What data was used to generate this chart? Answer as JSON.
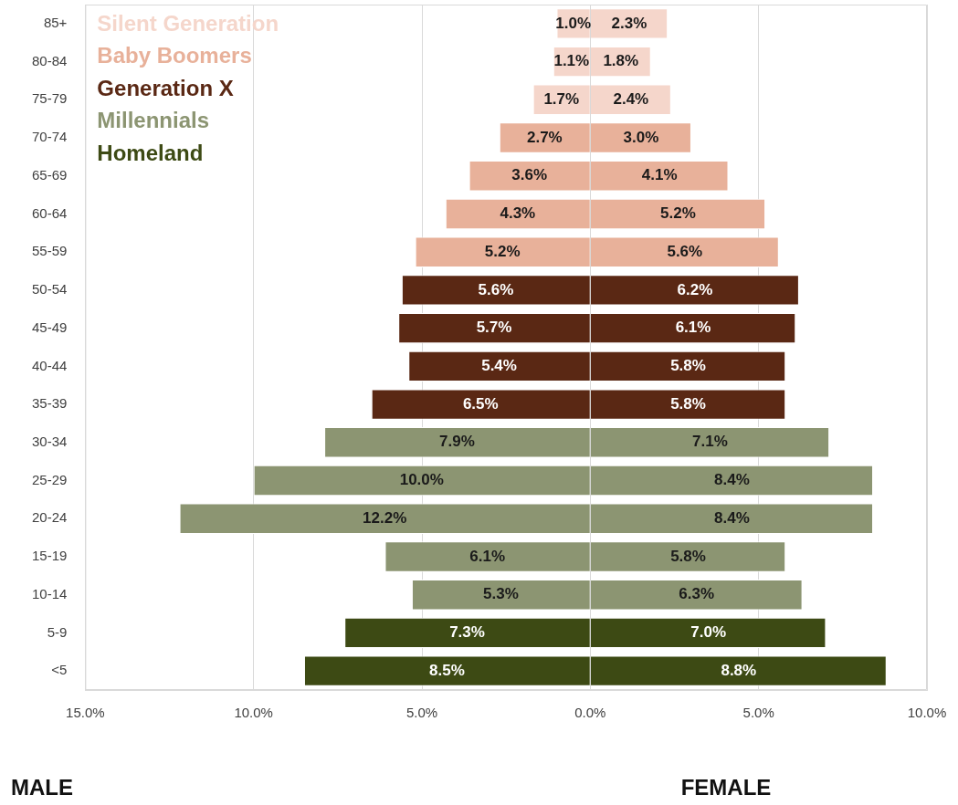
{
  "chart_data": {
    "type": "bar",
    "orientation": "horizontal",
    "categories": [
      "85+",
      "80-84",
      "75-79",
      "70-74",
      "65-69",
      "60-64",
      "55-59",
      "50-54",
      "45-49",
      "40-44",
      "35-39",
      "30-34",
      "25-29",
      "20-24",
      "15-19",
      "10-14",
      "5-9",
      "<5"
    ],
    "series": [
      {
        "name": "Silent Generation",
        "color": "#f5d6cb",
        "values": [
          1.0,
          1.1,
          1.7,
          null,
          null,
          null,
          null,
          null,
          null,
          null,
          null,
          null,
          null,
          null,
          null,
          null,
          null,
          null
        ],
        "base": [
          -1.0,
          -1.1,
          -1.7,
          null,
          null,
          null,
          null,
          null,
          null,
          null,
          null,
          null,
          null,
          null,
          null,
          null,
          null,
          null
        ],
        "value_labels": [
          "1.0%",
          "1.1%",
          "1.7%",
          null,
          null,
          null,
          null,
          null,
          null,
          null,
          null,
          null,
          null,
          null,
          null,
          null,
          null,
          null
        ]
      },
      {
        "color": "#f5d6cb",
        "values": [
          2.3,
          1.8,
          2.4,
          null,
          null,
          null,
          null,
          null,
          null,
          null,
          null,
          null,
          null,
          null,
          null,
          null,
          null,
          null
        ],
        "value_labels": [
          "2.3%",
          "1.8%",
          "2.4%",
          null,
          null,
          null,
          null,
          null,
          null,
          null,
          null,
          null,
          null,
          null,
          null,
          null,
          null,
          null
        ]
      },
      {
        "name": "Baby Boomers",
        "color": "#e8b19a",
        "values": [
          null,
          null,
          null,
          2.7,
          3.6,
          4.3,
          5.2,
          null,
          null,
          null,
          null,
          null,
          null,
          null,
          null,
          null,
          null,
          null
        ],
        "base": [
          null,
          null,
          null,
          -2.7,
          -3.6,
          -4.3,
          -5.2,
          null,
          null,
          null,
          null,
          null,
          null,
          null,
          null,
          null,
          null,
          null
        ],
        "value_labels": [
          null,
          null,
          null,
          "2.7%",
          "3.6%",
          "4.3%",
          "5.2%",
          null,
          null,
          null,
          null,
          null,
          null,
          null,
          null,
          null,
          null,
          null
        ]
      },
      {
        "color": "#e8b19a",
        "values": [
          null,
          null,
          null,
          3.0,
          4.1,
          5.2,
          5.6,
          null,
          null,
          null,
          null,
          null,
          null,
          null,
          null,
          null,
          null,
          null
        ],
        "value_labels": [
          null,
          null,
          null,
          "3.0%",
          "4.1%",
          "5.2%",
          "5.6%",
          null,
          null,
          null,
          null,
          null,
          null,
          null,
          null,
          null,
          null,
          null
        ]
      },
      {
        "name": "Generation X",
        "color": "#5a2814",
        "values": [
          null,
          null,
          null,
          null,
          null,
          null,
          null,
          5.6,
          5.7,
          5.4,
          6.5,
          null,
          null,
          null,
          null,
          null,
          null,
          null
        ],
        "base": [
          null,
          null,
          null,
          null,
          null,
          null,
          null,
          -5.6,
          -5.7,
          -5.4,
          -6.5,
          null,
          null,
          null,
          null,
          null,
          null,
          null
        ],
        "value_labels": [
          null,
          null,
          null,
          null,
          null,
          null,
          null,
          "5.6%",
          "5.7%",
          "5.4%",
          "6.5%",
          null,
          null,
          null,
          null,
          null,
          null,
          null
        ]
      },
      {
        "color": "#5a2814",
        "values": [
          null,
          null,
          null,
          null,
          null,
          null,
          null,
          6.2,
          6.1,
          5.8,
          5.8,
          null,
          null,
          null,
          null,
          null,
          null,
          null
        ],
        "value_labels": [
          null,
          null,
          null,
          null,
          null,
          null,
          null,
          "6.2%",
          "6.1%",
          "5.8%",
          "5.8%",
          null,
          null,
          null,
          null,
          null,
          null,
          null
        ]
      },
      {
        "name": "Millennials",
        "color": "#8c9572",
        "values": [
          null,
          null,
          null,
          null,
          null,
          null,
          null,
          null,
          null,
          null,
          null,
          7.9,
          10.0,
          12.2,
          6.1,
          5.3,
          null,
          null
        ],
        "base": [
          null,
          null,
          null,
          null,
          null,
          null,
          null,
          null,
          null,
          null,
          null,
          -7.9,
          -10.0,
          -12.2,
          -6.1,
          -5.3,
          null,
          null
        ],
        "value_labels": [
          null,
          null,
          null,
          null,
          null,
          null,
          null,
          null,
          null,
          null,
          null,
          "7.9%",
          "10.0%",
          "12.2%",
          "6.1%",
          "5.3%",
          null,
          null
        ]
      },
      {
        "color": "#8c9572",
        "values": [
          null,
          null,
          null,
          null,
          null,
          null,
          null,
          null,
          null,
          null,
          null,
          7.1,
          8.4,
          8.4,
          5.8,
          6.3,
          null,
          null
        ],
        "value_labels": [
          null,
          null,
          null,
          null,
          null,
          null,
          null,
          null,
          null,
          null,
          null,
          "7.1%",
          "8.4%",
          "8.4%",
          "5.8%",
          "6.3%",
          null,
          null
        ]
      },
      {
        "name": "Homeland",
        "color": "#3d4a14",
        "values": [
          null,
          null,
          null,
          null,
          null,
          null,
          null,
          null,
          null,
          null,
          null,
          null,
          null,
          null,
          null,
          null,
          7.3,
          8.5
        ],
        "base": [
          null,
          null,
          null,
          null,
          null,
          null,
          null,
          null,
          null,
          null,
          null,
          null,
          null,
          null,
          null,
          null,
          -7.3,
          -8.5
        ],
        "value_labels": [
          null,
          null,
          null,
          null,
          null,
          null,
          null,
          null,
          null,
          null,
          null,
          null,
          null,
          null,
          null,
          null,
          "7.3%",
          "8.5%"
        ]
      },
      {
        "color": "#3d4a14",
        "values": [
          null,
          null,
          null,
          null,
          null,
          null,
          null,
          null,
          null,
          null,
          null,
          null,
          null,
          null,
          null,
          null,
          7.0,
          8.8
        ],
        "value_labels": [
          null,
          null,
          null,
          null,
          null,
          null,
          null,
          null,
          null,
          null,
          null,
          null,
          null,
          null,
          null,
          null,
          "7.0%",
          "8.8%"
        ]
      }
    ],
    "xlim": [
      -15,
      10
    ],
    "xticks": [
      {
        "value": -15,
        "label": "15.0%"
      },
      {
        "value": -10,
        "label": "10.0%"
      },
      {
        "value": -5,
        "label": "5.0%"
      },
      {
        "value": 0,
        "label": "0.0%"
      },
      {
        "value": 5,
        "label": "5.0%"
      },
      {
        "value": 10,
        "label": "10.0%"
      }
    ],
    "grid": "x",
    "legend": "top left",
    "annotations": [
      "MALE",
      "FEMALE"
    ]
  }
}
